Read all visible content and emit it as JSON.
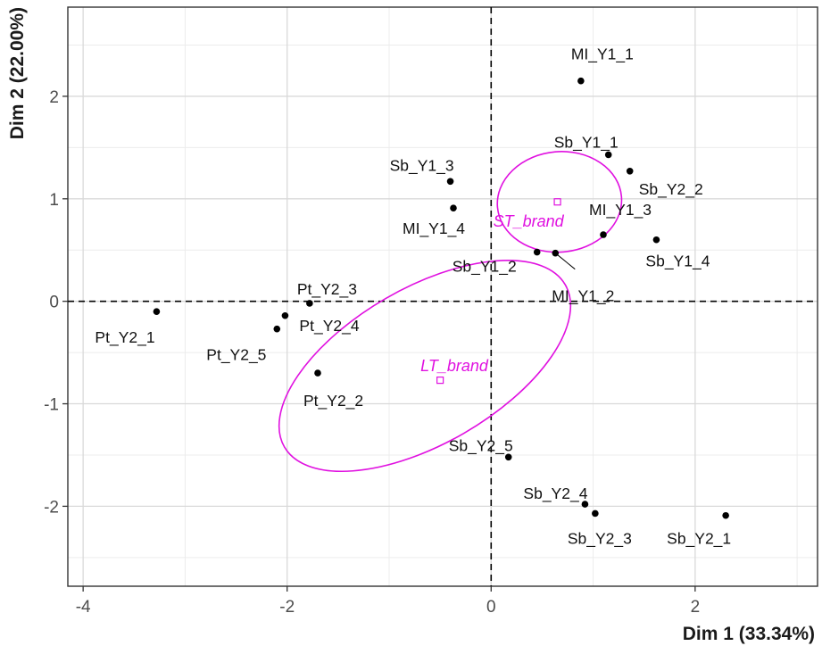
{
  "chart_data": {
    "type": "scatter",
    "xlabel": "Dim 1 (33.34%)",
    "ylabel": "Dim 2 (22.00%)",
    "xlim": [
      -4.15,
      3.2
    ],
    "ylim": [
      -2.78,
      2.87
    ],
    "x_ticks": [
      -4,
      -2,
      0,
      2
    ],
    "y_ticks": [
      -2,
      -1,
      0,
      1,
      2
    ],
    "x_tick_labels": [
      "-4",
      "-2",
      "0",
      "2"
    ],
    "y_tick_labels": [
      "-2",
      "-1",
      "0",
      "1",
      "2"
    ],
    "grid": true,
    "reference_lines": {
      "x": 0,
      "y": 0,
      "style": "dashed"
    },
    "point_color": "#000000",
    "ellipse_color": "#e011e0",
    "points": [
      {
        "label": "MI_Y1_1",
        "x": 0.88,
        "y": 2.15
      },
      {
        "label": "Sb_Y1_1",
        "x": 1.15,
        "y": 1.43
      },
      {
        "label": "Sb_Y2_2",
        "x": 1.36,
        "y": 1.27
      },
      {
        "label": "Sb_Y1_3",
        "x": -0.4,
        "y": 1.17
      },
      {
        "label": "MI_Y1_4",
        "x": -0.37,
        "y": 0.91
      },
      {
        "label": "MI_Y1_3",
        "x": 1.1,
        "y": 0.65
      },
      {
        "label": "Sb_Y1_4",
        "x": 1.62,
        "y": 0.6
      },
      {
        "label": "Sb_Y1_2",
        "x": 0.45,
        "y": 0.48
      },
      {
        "label": "MI_Y1_2",
        "x": 0.63,
        "y": 0.47
      },
      {
        "label": "Pt_Y2_3",
        "x": -1.78,
        "y": -0.02
      },
      {
        "label": "Pt_Y2_4",
        "x": -2.02,
        "y": -0.14
      },
      {
        "label": "Pt_Y2_1",
        "x": -3.28,
        "y": -0.1
      },
      {
        "label": "Pt_Y2_5",
        "x": -2.1,
        "y": -0.27
      },
      {
        "label": "Pt_Y2_2",
        "x": -1.7,
        "y": -0.7
      },
      {
        "label": "Sb_Y2_5",
        "x": 0.17,
        "y": -1.52
      },
      {
        "label": "Sb_Y2_4",
        "x": 0.92,
        "y": -1.98
      },
      {
        "label": "Sb_Y2_3",
        "x": 1.02,
        "y": -2.07
      },
      {
        "label": "Sb_Y2_1",
        "x": 2.3,
        "y": -2.09
      }
    ],
    "categories": [
      {
        "label": "ST_brand",
        "center": [
          0.65,
          0.97
        ],
        "ellipse": {
          "cx": 0.67,
          "cy": 0.97,
          "rx": 0.61,
          "ry": 0.49,
          "angle_deg": -5
        }
      },
      {
        "label": "LT_brand",
        "center": [
          -0.5,
          -0.77
        ],
        "ellipse": {
          "cx": -0.65,
          "cy": -0.63,
          "rx": 1.59,
          "ry": 0.76,
          "angle_deg": -30
        }
      }
    ]
  }
}
